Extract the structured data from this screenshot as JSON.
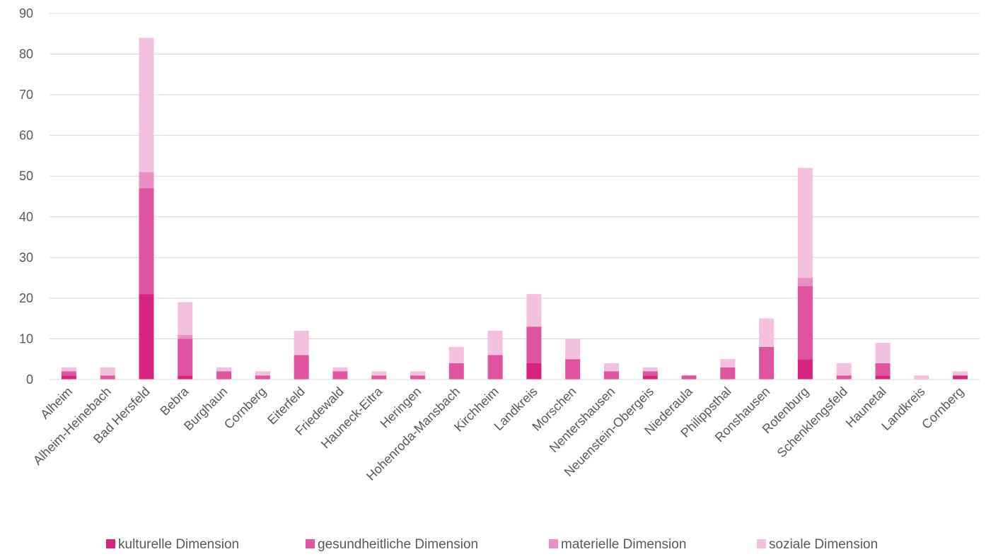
{
  "chart_data": {
    "type": "bar",
    "stacked": true,
    "title": "",
    "xlabel": "",
    "ylabel": "",
    "ylim": [
      0,
      90
    ],
    "yticks": [
      0,
      10,
      20,
      30,
      40,
      50,
      60,
      70,
      80,
      90
    ],
    "grid": true,
    "legend_position": "bottom",
    "categories": [
      "Alheim",
      "Alheim-Heinebach",
      "Bad Hersfeld",
      "Bebra",
      "Burghaun",
      "Cornberg",
      "Eiterfeld",
      "Friedewald",
      "Hauneck-Eitra",
      "Heringen",
      "Hohenroda-Mansbach",
      "Kirchheim",
      "Landkreis",
      "Morschen",
      "Nentershausen",
      "Neuenstein-Obergeis",
      "Niederaula",
      "Philippsthal",
      "Ronshausen",
      "Rotenburg",
      "Schenklengsfeld",
      "Haunetal",
      "Landkreis",
      "Cornberg"
    ],
    "series": [
      {
        "name": "kulturelle Dimension",
        "color": "#d6247f",
        "values": [
          1,
          0,
          21,
          1,
          0,
          0,
          0,
          0,
          0,
          0,
          0,
          0,
          4,
          0,
          0,
          1,
          0,
          0,
          0,
          5,
          0,
          1,
          0,
          1
        ]
      },
      {
        "name": "gesundheitliche Dimension",
        "color": "#e0549f",
        "values": [
          1,
          1,
          26,
          9,
          2,
          1,
          6,
          2,
          1,
          1,
          4,
          6,
          9,
          5,
          2,
          1,
          1,
          3,
          8,
          18,
          1,
          3,
          0,
          0
        ]
      },
      {
        "name": "materielle Dimension",
        "color": "#ea8fc1",
        "values": [
          0,
          0,
          4,
          1,
          0,
          0,
          0,
          0,
          0,
          0,
          0,
          0,
          0,
          0,
          0,
          0,
          0,
          0,
          0,
          2,
          0,
          0,
          0,
          0
        ]
      },
      {
        "name": "soziale Dimension",
        "color": "#f3c1dd",
        "values": [
          1,
          2,
          33,
          8,
          1,
          1,
          6,
          1,
          1,
          1,
          4,
          6,
          8,
          5,
          2,
          1,
          0,
          2,
          7,
          27,
          3,
          5,
          1,
          1
        ]
      }
    ]
  }
}
